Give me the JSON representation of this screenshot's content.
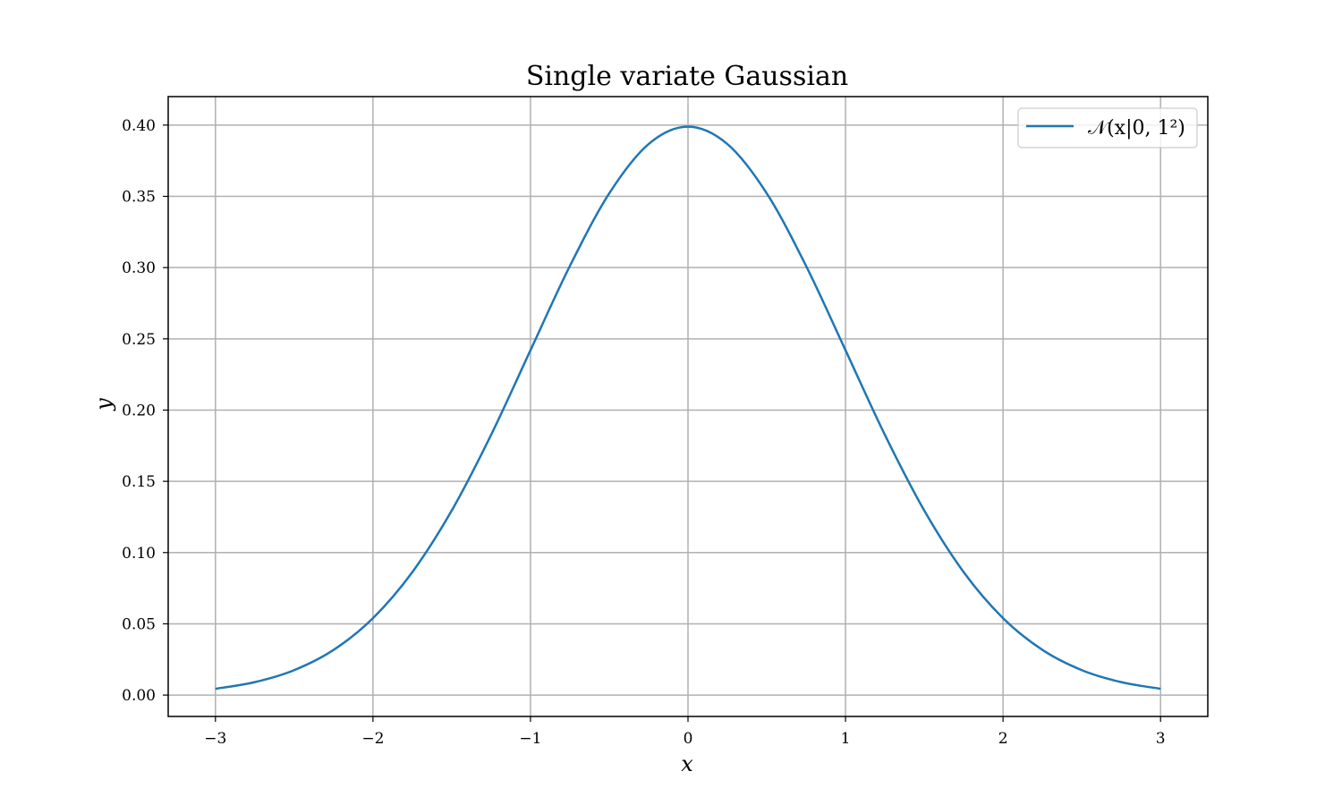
{
  "chart_data": {
    "type": "line",
    "title": "Single variate Gaussian",
    "xlabel": "x",
    "ylabel": "y",
    "xlim": [
      -3.3,
      3.3
    ],
    "ylim": [
      -0.015,
      0.42
    ],
    "grid": true,
    "legend_position": "top-right",
    "x_ticks": [
      -3,
      -2,
      -1,
      0,
      1,
      2,
      3
    ],
    "x_tick_labels": [
      "−3",
      "−2",
      "−1",
      "0",
      "1",
      "2",
      "3"
    ],
    "y_ticks": [
      0.0,
      0.05,
      0.1,
      0.15,
      0.2,
      0.25,
      0.3,
      0.35,
      0.4
    ],
    "y_tick_labels": [
      "0.00",
      "0.05",
      "0.10",
      "0.15",
      "0.20",
      "0.25",
      "0.30",
      "0.35",
      "0.40"
    ],
    "series": [
      {
        "name": "𝒩(x|0, 1²)",
        "color": "#1f77b4",
        "x": [
          -3.0,
          -2.75,
          -2.5,
          -2.25,
          -2.0,
          -1.75,
          -1.5,
          -1.25,
          -1.0,
          -0.75,
          -0.5,
          -0.25,
          0.0,
          0.25,
          0.5,
          0.75,
          1.0,
          1.25,
          1.5,
          1.75,
          2.0,
          2.25,
          2.5,
          2.75,
          3.0
        ],
        "y": [
          0.0044,
          0.0091,
          0.0175,
          0.0317,
          0.054,
          0.0863,
          0.1295,
          0.1826,
          0.242,
          0.3011,
          0.3521,
          0.3867,
          0.3989,
          0.3867,
          0.3521,
          0.3011,
          0.242,
          0.1826,
          0.1295,
          0.0863,
          0.054,
          0.0317,
          0.0175,
          0.0091,
          0.0044
        ]
      }
    ]
  }
}
